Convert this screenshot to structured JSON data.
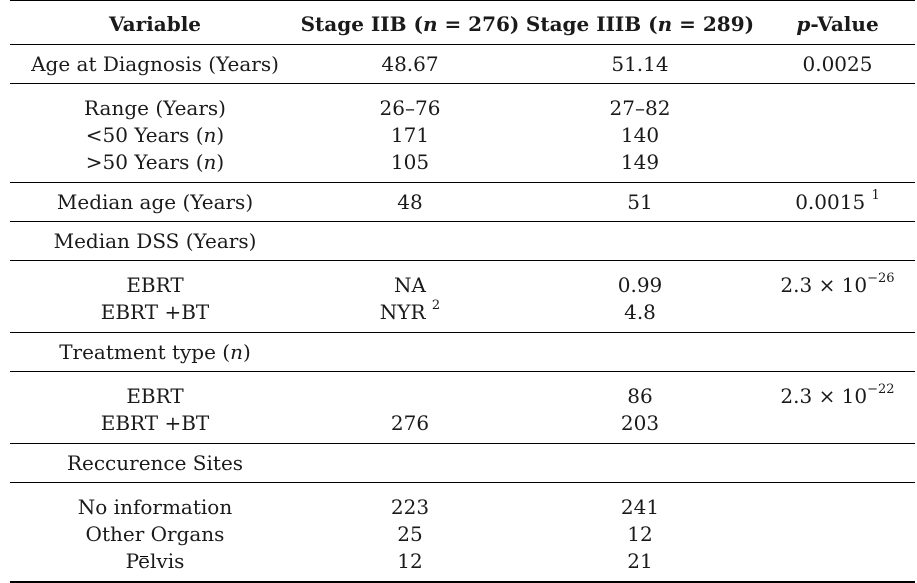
{
  "header": {
    "variable": "Variable",
    "stage_iib": "Stage IIB (n = 276)",
    "stage_iib_prefix": "Stage IIB (",
    "stage_iib_n": "n",
    "stage_iib_suffix": " = 276)",
    "stage_iiib_prefix": "Stage IIIB (",
    "stage_iiib_n": "n",
    "stage_iiib_suffix": " = 289)",
    "pvalue_p": "p",
    "pvalue_suffix": "-Value"
  },
  "rows": {
    "age_dx": {
      "label": "Age at Diagnosis (Years)",
      "iib": "48.67",
      "iiib": "51.14",
      "p": "0.0025"
    },
    "range": {
      "label": "Range (Years)",
      "iib": "26–76",
      "iiib": "27–82"
    },
    "lt50": {
      "label_prefix": "<50 Years (",
      "label_n": "n",
      "label_suffix": ")",
      "iib": "171",
      "iiib": "140"
    },
    "gt50": {
      "label_prefix": ">50 Years (",
      "label_n": "n",
      "label_suffix": ")",
      "iib": "105",
      "iiib": "149"
    },
    "median_age": {
      "label": "Median age (Years)",
      "iib": "48",
      "iiib": "51",
      "p": "0.0015",
      "p_sup": "1"
    },
    "median_dss": {
      "label": "Median DSS (Years)"
    },
    "dss_ebrt": {
      "label": "EBRT",
      "iib": "NA",
      "iiib": "0.99",
      "p_base": "2.3 × 10",
      "p_exp": "−26"
    },
    "dss_ebrt_bt": {
      "label": "EBRT +BT",
      "iib": "NYR",
      "iib_sup": "2",
      "iiib": "4.8"
    },
    "treatment_type": {
      "label_prefix": "Treatment type (",
      "label_n": "n",
      "label_suffix": ")"
    },
    "tt_ebrt": {
      "label": "EBRT",
      "iib": "",
      "iiib": "86",
      "p_base": "2.3 × 10",
      "p_exp": "−22"
    },
    "tt_ebrt_bt": {
      "label": "EBRT +BT",
      "iib": "276",
      "iiib": "203"
    },
    "recurrence_sites": {
      "label": "Reccurence Sites"
    },
    "no_info": {
      "label": "No information",
      "iib": "223",
      "iiib": "241"
    },
    "other_organs": {
      "label": "Other Organs",
      "iib": "25",
      "iiib": "12"
    },
    "pelvis": {
      "label": "Pelvis",
      "iib": "12",
      "iiib": "21"
    }
  }
}
